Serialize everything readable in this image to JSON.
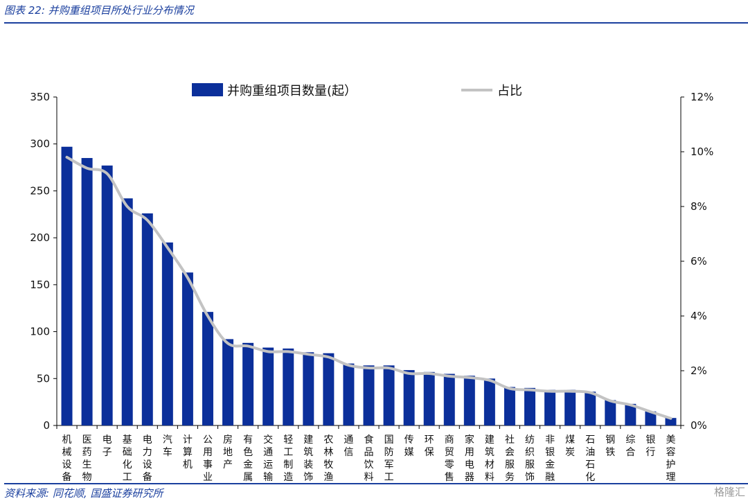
{
  "header": {
    "caption": "图表 22:  并购重组项目所处行业分布情况"
  },
  "footer": {
    "source": "资料来源:  同花顺, 国盛证券研究所",
    "watermark": "格隆汇"
  },
  "colors": {
    "bar": "#0b2f9a",
    "line": "#c3c3c3",
    "brand": "#1a3f9e"
  },
  "chart_data": {
    "type": "bar",
    "legend_position": "top",
    "grid": false,
    "categories": [
      "机械设备",
      "医药生物",
      "电子",
      "基础化工",
      "电力设备",
      "汽车",
      "计算机",
      "公用事业",
      "房地产",
      "有色金属",
      "交通运输",
      "轻工制造",
      "建筑装饰",
      "农林牧渔",
      "通信",
      "食品饮料",
      "国防军工",
      "传媒",
      "环保",
      "商贸零售",
      "家用电器",
      "建筑材料",
      "社会服务",
      "纺织服饰",
      "非银金融",
      "煤炭",
      "石油石化",
      "钢铁",
      "综合",
      "银行",
      "美容护理"
    ],
    "series": [
      {
        "name": "并购重组项目数量(起）",
        "type": "bar",
        "axis": "left",
        "values": [
          297,
          285,
          277,
          242,
          226,
          195,
          163,
          121,
          92,
          88,
          83,
          82,
          78,
          77,
          66,
          64,
          64,
          59,
          57,
          55,
          53,
          50,
          41,
          40,
          38,
          38,
          36,
          27,
          23,
          15,
          8
        ]
      },
      {
        "name": "占比",
        "type": "line",
        "axis": "right",
        "values": [
          9.8,
          9.4,
          9.2,
          8.0,
          7.5,
          6.5,
          5.4,
          4.0,
          3.0,
          2.9,
          2.7,
          2.7,
          2.6,
          2.5,
          2.2,
          2.1,
          2.1,
          1.9,
          1.9,
          1.8,
          1.75,
          1.65,
          1.35,
          1.3,
          1.25,
          1.25,
          1.2,
          0.9,
          0.75,
          0.5,
          0.26
        ]
      }
    ],
    "y_left": {
      "range": [
        0,
        350
      ],
      "ticks": [
        "0",
        "50",
        "100",
        "150",
        "200",
        "250",
        "300",
        "350"
      ]
    },
    "y_right": {
      "range": [
        0,
        12
      ],
      "ticks": [
        "0%",
        "2%",
        "4%",
        "6%",
        "8%",
        "10%",
        "12%"
      ]
    }
  }
}
